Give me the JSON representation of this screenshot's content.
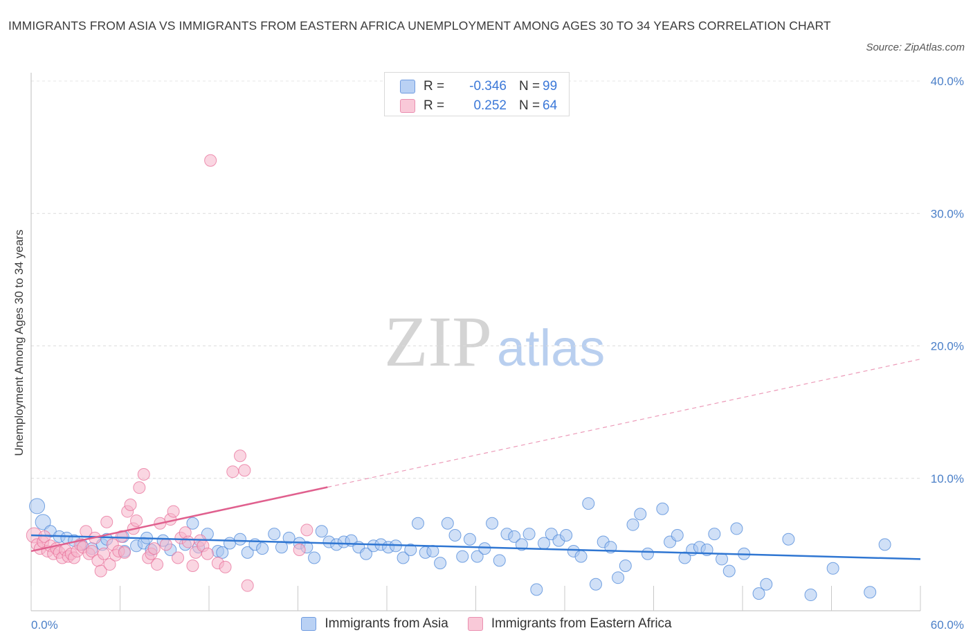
{
  "title": "IMMIGRANTS FROM ASIA VS IMMIGRANTS FROM EASTERN AFRICA UNEMPLOYMENT AMONG AGES 30 TO 34 YEARS CORRELATION CHART",
  "source": "Source: ZipAtlas.com",
  "watermark": {
    "zip": "ZIP",
    "atlas": "atlas"
  },
  "colors": {
    "asia": "#4a86d8",
    "asia_fill": "#a9c6f0",
    "africa": "#e8709a",
    "africa_fill": "#f6b5ca",
    "axis_text": "#4a7fc8"
  },
  "legend": {
    "rows": [
      {
        "r_label": "R =",
        "r_value": "-0.346",
        "n_label": "N =",
        "n_value": "99"
      },
      {
        "r_label": "R =",
        "r_value": "0.252",
        "n_label": "N =",
        "n_value": "64"
      }
    ]
  },
  "chart_data": {
    "type": "scatter",
    "title": "IMMIGRANTS FROM ASIA VS IMMIGRANTS FROM EASTERN AFRICA UNEMPLOYMENT AMONG AGES 30 TO 34 YEARS CORRELATION CHART",
    "xlabel": "",
    "ylabel": "Unemployment Among Ages 30 to 34 years",
    "xlim": [
      0,
      60
    ],
    "ylim": [
      0,
      40
    ],
    "x_tick_labels": [
      "0.0%",
      "60.0%"
    ],
    "y_ticks": [
      10,
      20,
      30,
      40
    ],
    "y_tick_labels": [
      "10.0%",
      "20.0%",
      "30.0%",
      "40.0%"
    ],
    "series": [
      {
        "name": "Immigrants from Asia",
        "r": -0.346,
        "n": 99,
        "trend": {
          "x0": 0,
          "y0": 5.7,
          "x1": 60,
          "y1": 3.9
        },
        "points": [
          [
            0.4,
            7.9
          ],
          [
            0.8,
            6.7
          ],
          [
            1.3,
            6.0
          ],
          [
            1.9,
            5.6
          ],
          [
            2.4,
            5.5
          ],
          [
            2.9,
            5.3
          ],
          [
            3.4,
            5.0
          ],
          [
            4.1,
            4.7
          ],
          [
            4.8,
            5.0
          ],
          [
            5.1,
            5.4
          ],
          [
            6.2,
            5.6
          ],
          [
            6.3,
            4.5
          ],
          [
            7.1,
            4.9
          ],
          [
            7.6,
            5.1
          ],
          [
            7.8,
            5.5
          ],
          [
            8.1,
            4.6
          ],
          [
            8.9,
            5.3
          ],
          [
            9.4,
            4.6
          ],
          [
            10.4,
            5.0
          ],
          [
            10.9,
            6.6
          ],
          [
            11.3,
            4.8
          ],
          [
            11.9,
            5.8
          ],
          [
            12.6,
            4.5
          ],
          [
            12.9,
            4.4
          ],
          [
            13.4,
            5.1
          ],
          [
            14.1,
            5.4
          ],
          [
            14.6,
            4.4
          ],
          [
            15.1,
            5.0
          ],
          [
            15.6,
            4.7
          ],
          [
            16.4,
            5.8
          ],
          [
            16.9,
            4.8
          ],
          [
            17.4,
            5.5
          ],
          [
            18.1,
            5.1
          ],
          [
            18.6,
            4.8
          ],
          [
            19.1,
            4.0
          ],
          [
            19.6,
            6.0
          ],
          [
            20.1,
            5.2
          ],
          [
            20.6,
            5.0
          ],
          [
            21.1,
            5.2
          ],
          [
            21.6,
            5.3
          ],
          [
            22.1,
            4.8
          ],
          [
            22.6,
            4.3
          ],
          [
            23.1,
            4.9
          ],
          [
            23.6,
            5.0
          ],
          [
            24.1,
            4.8
          ],
          [
            24.6,
            4.9
          ],
          [
            25.1,
            4.0
          ],
          [
            25.6,
            4.6
          ],
          [
            26.1,
            6.6
          ],
          [
            26.6,
            4.4
          ],
          [
            27.1,
            4.5
          ],
          [
            27.6,
            3.6
          ],
          [
            28.1,
            6.6
          ],
          [
            28.6,
            5.7
          ],
          [
            29.1,
            4.1
          ],
          [
            29.6,
            5.4
          ],
          [
            30.1,
            4.1
          ],
          [
            30.6,
            4.7
          ],
          [
            31.1,
            6.6
          ],
          [
            31.6,
            3.8
          ],
          [
            32.1,
            5.8
          ],
          [
            32.6,
            5.6
          ],
          [
            33.1,
            5.0
          ],
          [
            33.6,
            5.8
          ],
          [
            34.1,
            1.6
          ],
          [
            34.6,
            5.1
          ],
          [
            35.1,
            5.8
          ],
          [
            35.6,
            5.3
          ],
          [
            36.1,
            5.7
          ],
          [
            36.6,
            4.5
          ],
          [
            37.1,
            4.1
          ],
          [
            37.6,
            8.1
          ],
          [
            38.1,
            2.0
          ],
          [
            38.6,
            5.2
          ],
          [
            39.1,
            4.8
          ],
          [
            39.6,
            2.5
          ],
          [
            40.1,
            3.4
          ],
          [
            40.6,
            6.5
          ],
          [
            41.1,
            7.3
          ],
          [
            41.6,
            4.3
          ],
          [
            42.6,
            7.7
          ],
          [
            43.1,
            5.2
          ],
          [
            43.6,
            5.7
          ],
          [
            44.1,
            4.0
          ],
          [
            44.6,
            4.6
          ],
          [
            45.1,
            4.8
          ],
          [
            45.6,
            4.6
          ],
          [
            46.1,
            5.8
          ],
          [
            46.6,
            3.9
          ],
          [
            47.1,
            3.0
          ],
          [
            47.6,
            6.2
          ],
          [
            48.1,
            4.3
          ],
          [
            49.1,
            1.3
          ],
          [
            49.6,
            2.0
          ],
          [
            51.1,
            5.4
          ],
          [
            52.6,
            1.2
          ],
          [
            54.1,
            3.2
          ],
          [
            56.6,
            1.4
          ],
          [
            57.6,
            5.0
          ]
        ]
      },
      {
        "name": "Immigrants from Eastern Africa",
        "r": 0.252,
        "n": 64,
        "trend": {
          "x0": 0,
          "y0": 4.5,
          "x1": 60,
          "y1": 19.0,
          "solid_until_x": 20
        },
        "points": [
          [
            0.2,
            5.7
          ],
          [
            0.4,
            5.0
          ],
          [
            0.6,
            4.7
          ],
          [
            0.8,
            5.2
          ],
          [
            0.9,
            5.6
          ],
          [
            1.1,
            4.5
          ],
          [
            1.3,
            4.9
          ],
          [
            1.5,
            4.3
          ],
          [
            1.7,
            4.7
          ],
          [
            1.9,
            4.4
          ],
          [
            2.1,
            4.0
          ],
          [
            2.3,
            4.6
          ],
          [
            2.5,
            4.1
          ],
          [
            2.7,
            4.3
          ],
          [
            2.9,
            4.0
          ],
          [
            3.1,
            4.5
          ],
          [
            3.3,
            5.0
          ],
          [
            3.5,
            4.8
          ],
          [
            3.7,
            6.0
          ],
          [
            3.9,
            4.3
          ],
          [
            4.1,
            4.5
          ],
          [
            4.3,
            5.5
          ],
          [
            4.5,
            3.8
          ],
          [
            4.7,
            3.0
          ],
          [
            4.9,
            4.3
          ],
          [
            5.1,
            6.7
          ],
          [
            5.3,
            3.5
          ],
          [
            5.5,
            5.0
          ],
          [
            5.7,
            4.2
          ],
          [
            5.9,
            4.5
          ],
          [
            6.1,
            5.6
          ],
          [
            6.3,
            4.4
          ],
          [
            6.5,
            7.5
          ],
          [
            6.7,
            8.0
          ],
          [
            6.9,
            6.2
          ],
          [
            7.1,
            6.8
          ],
          [
            7.3,
            9.3
          ],
          [
            7.6,
            10.3
          ],
          [
            7.9,
            4.0
          ],
          [
            8.1,
            4.3
          ],
          [
            8.3,
            4.7
          ],
          [
            8.5,
            3.5
          ],
          [
            8.7,
            6.6
          ],
          [
            9.1,
            5.0
          ],
          [
            9.4,
            6.9
          ],
          [
            9.6,
            7.5
          ],
          [
            9.9,
            4.0
          ],
          [
            10.1,
            5.5
          ],
          [
            10.4,
            5.9
          ],
          [
            10.6,
            5.2
          ],
          [
            10.9,
            3.4
          ],
          [
            11.1,
            4.4
          ],
          [
            11.4,
            5.3
          ],
          [
            11.6,
            4.9
          ],
          [
            11.9,
            4.3
          ],
          [
            12.1,
            34.0
          ],
          [
            12.6,
            3.6
          ],
          [
            13.1,
            3.3
          ],
          [
            13.6,
            10.5
          ],
          [
            14.1,
            11.7
          ],
          [
            14.4,
            10.6
          ],
          [
            14.6,
            1.9
          ],
          [
            18.1,
            4.6
          ],
          [
            18.6,
            6.1
          ]
        ]
      }
    ]
  },
  "bottom_legend": [
    "Immigrants from Asia",
    "Immigrants from Eastern Africa"
  ]
}
